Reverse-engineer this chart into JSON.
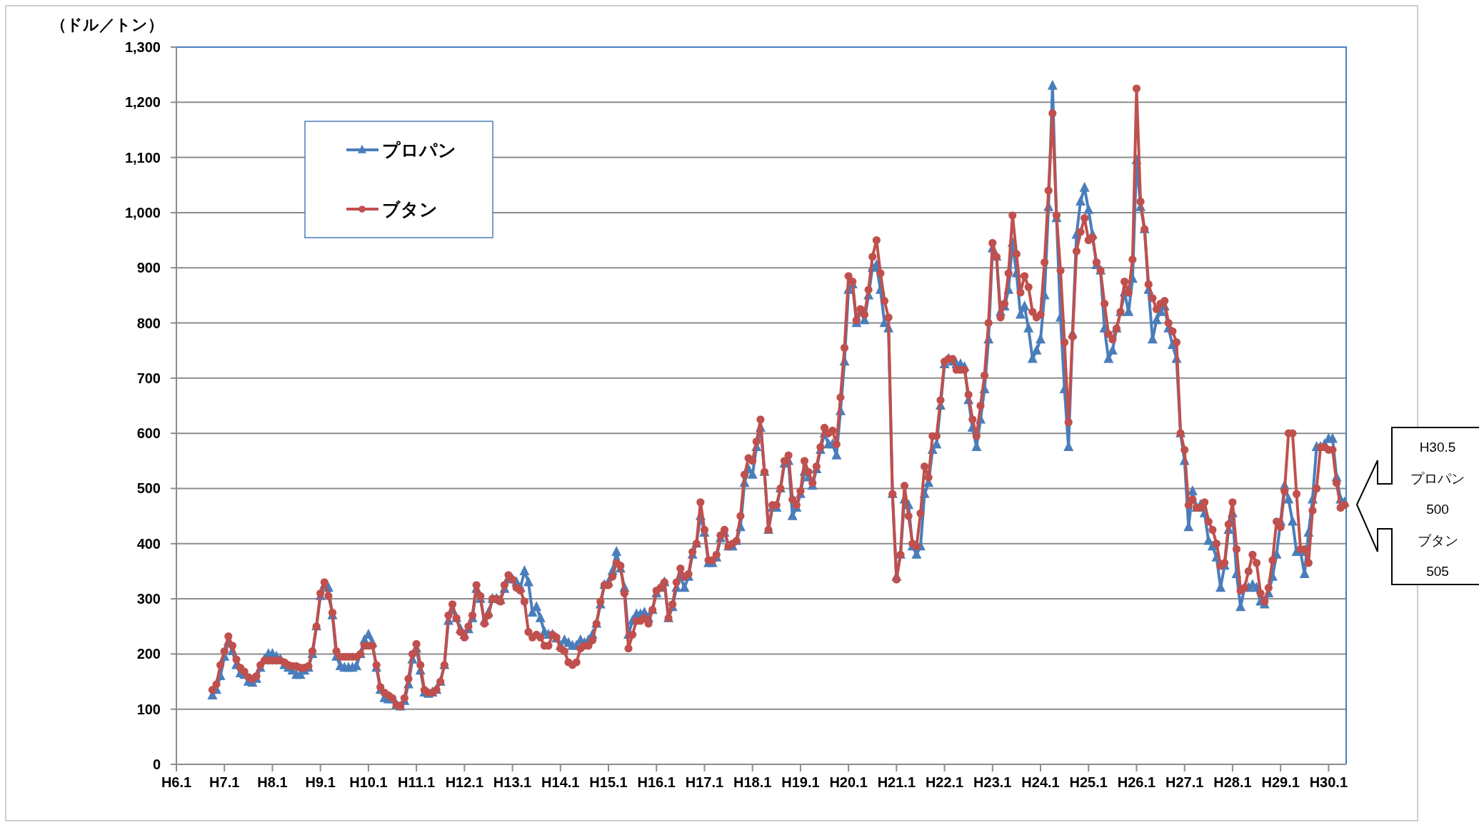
{
  "chart_data": {
    "type": "line",
    "ylabel": "（ドル／トン）",
    "categories": [
      "H6.1",
      null,
      null,
      null,
      null,
      null,
      null,
      null,
      null,
      null,
      null,
      null,
      "H7.1",
      null,
      null,
      null,
      null,
      null,
      null,
      null,
      null,
      null,
      null,
      null,
      "H8.1",
      null,
      null,
      null,
      null,
      null,
      null,
      null,
      null,
      null,
      null,
      null,
      "H9.1",
      null,
      null,
      null,
      null,
      null,
      null,
      null,
      null,
      null,
      null,
      null,
      "H10.1",
      null,
      null,
      null,
      null,
      null,
      null,
      null,
      null,
      null,
      null,
      null,
      "H11.1",
      null,
      null,
      null,
      null,
      null,
      null,
      null,
      null,
      null,
      null,
      null,
      "H12.1",
      null,
      null,
      null,
      null,
      null,
      null,
      null,
      null,
      null,
      null,
      null,
      "H13.1",
      null,
      null,
      null,
      null,
      null,
      null,
      null,
      null,
      null,
      null,
      null,
      "H14.1",
      null,
      null,
      null,
      null,
      null,
      null,
      null,
      null,
      null,
      null,
      null,
      "H15.1",
      null,
      null,
      null,
      null,
      null,
      null,
      null,
      null,
      null,
      null,
      null,
      "H16.1",
      null,
      null,
      null,
      null,
      null,
      null,
      null,
      null,
      null,
      null,
      null,
      "H17.1",
      null,
      null,
      null,
      null,
      null,
      null,
      null,
      null,
      null,
      null,
      null,
      "H18.1",
      null,
      null,
      null,
      null,
      null,
      null,
      null,
      null,
      null,
      null,
      null,
      "H19.1",
      null,
      null,
      null,
      null,
      null,
      null,
      null,
      null,
      null,
      null,
      null,
      "H20.1",
      null,
      null,
      null,
      null,
      null,
      null,
      null,
      null,
      null,
      null,
      null,
      "H21.1",
      null,
      null,
      null,
      null,
      null,
      null,
      null,
      null,
      null,
      null,
      null,
      "H22.1",
      null,
      null,
      null,
      null,
      null,
      null,
      null,
      null,
      null,
      null,
      null,
      "H23.1",
      null,
      null,
      null,
      null,
      null,
      null,
      null,
      null,
      null,
      null,
      null,
      "H24.1",
      null,
      null,
      null,
      null,
      null,
      null,
      null,
      null,
      null,
      null,
      null,
      "H25.1",
      null,
      null,
      null,
      null,
      null,
      null,
      null,
      null,
      null,
      null,
      null,
      "H26.1",
      null,
      null,
      null,
      null,
      null,
      null,
      null,
      null,
      null,
      null,
      null,
      "H27.1",
      null,
      null,
      null,
      null,
      null,
      null,
      null,
      null,
      null,
      null,
      null,
      "H28.1",
      null,
      null,
      null,
      null,
      null,
      null,
      null,
      null,
      null,
      null,
      null,
      "H29.1",
      null,
      null,
      null,
      null,
      null,
      null,
      null,
      null,
      null,
      null,
      null,
      "H30.1",
      null,
      null,
      null,
      null
    ],
    "series": [
      {
        "name": "プロパン",
        "color": "#4a7ebb",
        "marker": "triangle",
        "values": [
          null,
          null,
          null,
          null,
          null,
          null,
          null,
          null,
          null,
          125,
          135,
          160,
          195,
          222,
          205,
          180,
          165,
          162,
          150,
          148,
          155,
          175,
          190,
          200,
          200,
          195,
          190,
          180,
          175,
          170,
          162,
          162,
          170,
          175,
          200,
          250,
          305,
          325,
          320,
          270,
          195,
          178,
          175,
          175,
          175,
          178,
          200,
          225,
          235,
          220,
          175,
          135,
          120,
          118,
          118,
          108,
          105,
          115,
          145,
          190,
          210,
          170,
          130,
          128,
          130,
          135,
          150,
          180,
          260,
          280,
          265,
          245,
          235,
          245,
          265,
          318,
          300,
          260,
          275,
          300,
          300,
          298,
          318,
          338,
          335,
          330,
          320,
          350,
          330,
          275,
          285,
          265,
          240,
          235,
          235,
          228,
          215,
          225,
          220,
          215,
          215,
          225,
          220,
          225,
          235,
          255,
          290,
          325,
          330,
          350,
          385,
          355,
          320,
          235,
          260,
          272,
          272,
          275,
          265,
          280,
          310,
          320,
          330,
          265,
          285,
          320,
          340,
          320,
          340,
          380,
          400,
          450,
          420,
          365,
          365,
          375,
          410,
          420,
          395,
          395,
          405,
          430,
          510,
          535,
          525,
          575,
          610,
          530,
          425,
          465,
          465,
          500,
          545,
          550,
          450,
          465,
          490,
          530,
          520,
          505,
          535,
          570,
          600,
          580,
          580,
          560,
          640,
          730,
          860,
          870,
          800,
          820,
          805,
          850,
          900,
          905,
          860,
          800,
          790,
          490,
          340,
          380,
          480,
          470,
          395,
          380,
          395,
          490,
          510,
          570,
          580,
          650,
          725,
          735,
          730,
          725,
          725,
          720,
          660,
          610,
          575,
          625,
          680,
          770,
          935,
          920,
          820,
          830,
          860,
          945,
          890,
          815,
          830,
          790,
          735,
          750,
          770,
          850,
          1010,
          1230,
          990,
          810,
          680,
          575,
          780,
          960,
          1020,
          1045,
          1005,
          960,
          905,
          895,
          790,
          735,
          750,
          790,
          820,
          855,
          820,
          880,
          1095,
          1010,
          970,
          860,
          770,
          805,
          820,
          830,
          790,
          760,
          735,
          600,
          550,
          430,
          495,
          465,
          470,
          455,
          405,
          395,
          375,
          320,
          360,
          425,
          455,
          345,
          285,
          320,
          320,
          325,
          320,
          295,
          290,
          310,
          340,
          380,
          440,
          505,
          480,
          440,
          385,
          385,
          345,
          420,
          480,
          575,
          575,
          580,
          590,
          590,
          520,
          480,
          475
        ]
      },
      {
        "name": "ブタン",
        "color": "#c0504d",
        "marker": "circle",
        "values": [
          null,
          null,
          null,
          null,
          null,
          null,
          null,
          null,
          null,
          135,
          145,
          180,
          205,
          232,
          215,
          190,
          175,
          168,
          158,
          155,
          160,
          180,
          188,
          188,
          188,
          188,
          188,
          185,
          180,
          178,
          178,
          175,
          175,
          178,
          205,
          250,
          310,
          330,
          305,
          275,
          205,
          195,
          195,
          195,
          195,
          195,
          200,
          215,
          215,
          215,
          180,
          140,
          130,
          125,
          120,
          108,
          105,
          120,
          155,
          200,
          218,
          180,
          135,
          130,
          130,
          135,
          150,
          180,
          270,
          290,
          265,
          240,
          230,
          250,
          270,
          325,
          305,
          255,
          270,
          300,
          300,
          295,
          325,
          343,
          335,
          320,
          315,
          295,
          240,
          230,
          235,
          230,
          215,
          215,
          235,
          230,
          210,
          205,
          185,
          180,
          185,
          210,
          215,
          215,
          225,
          255,
          295,
          325,
          325,
          340,
          365,
          360,
          310,
          210,
          235,
          260,
          260,
          265,
          255,
          280,
          315,
          320,
          330,
          265,
          290,
          330,
          355,
          340,
          345,
          385,
          400,
          475,
          425,
          370,
          370,
          380,
          415,
          425,
          395,
          400,
          405,
          450,
          525,
          555,
          550,
          585,
          625,
          530,
          425,
          470,
          470,
          500,
          550,
          560,
          480,
          470,
          495,
          550,
          530,
          510,
          540,
          575,
          610,
          600,
          605,
          580,
          665,
          755,
          885,
          875,
          805,
          825,
          815,
          860,
          920,
          950,
          890,
          840,
          810,
          490,
          335,
          380,
          505,
          450,
          400,
          395,
          455,
          540,
          520,
          595,
          595,
          660,
          730,
          735,
          735,
          715,
          715,
          715,
          670,
          625,
          595,
          650,
          705,
          800,
          945,
          920,
          810,
          835,
          890,
          995,
          925,
          855,
          885,
          865,
          820,
          810,
          815,
          910,
          1040,
          1180,
          995,
          895,
          765,
          620,
          775,
          930,
          965,
          990,
          950,
          955,
          910,
          895,
          835,
          780,
          770,
          790,
          820,
          875,
          855,
          915,
          1225,
          1020,
          970,
          870,
          845,
          825,
          835,
          840,
          800,
          785,
          765,
          600,
          570,
          470,
          480,
          465,
          465,
          475,
          440,
          425,
          400,
          360,
          365,
          435,
          475,
          390,
          315,
          320,
          350,
          380,
          365,
          310,
          295,
          320,
          370,
          440,
          430,
          495,
          600,
          600,
          490,
          390,
          390,
          365,
          460,
          500,
          575,
          575,
          570,
          570,
          510,
          465,
          470
        ]
      }
    ],
    "ylim": [
      0,
      1300
    ],
    "yticks": [
      0,
      100,
      200,
      300,
      400,
      500,
      600,
      700,
      800,
      900,
      {
        "value": 1000,
        "label": "1,000"
      },
      {
        "value": 1100,
        "label": "1,100"
      },
      {
        "value": 1200,
        "label": "1,200"
      },
      {
        "value": 1300,
        "label": "1,300"
      }
    ],
    "grid": "y",
    "legend": "top left",
    "line_style": "solid",
    "annotations": [
      "H30.5",
      "プロパン",
      "500",
      "ブタン",
      "505"
    ]
  }
}
